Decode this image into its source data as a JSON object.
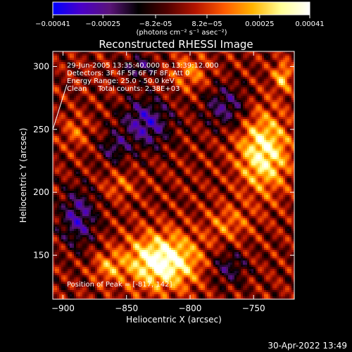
{
  "colorbar": {
    "min": -0.00041,
    "max": 0.00041,
    "tick_labels": [
      "-0.00041",
      "-0.00025",
      "-8.2e-05",
      "8.2e-05",
      "0.00025",
      "0.00041"
    ],
    "unit_label": "(photons cm⁻² s⁻¹ asec⁻²)",
    "stops": [
      "#0000ff",
      "#4b00c8",
      "#5a1478",
      "#000000",
      "#500000",
      "#b41400",
      "#ff5a00",
      "#ffb400",
      "#ffff96",
      "#ffffff"
    ]
  },
  "chart_data": {
    "type": "heatmap",
    "title": "Reconstructed RHESSI Image",
    "xlabel": "Heliocentric X (arcsec)",
    "ylabel": "Heliocentric Y (arcsec)",
    "xlim": [
      -908,
      -718
    ],
    "ylim": [
      115,
      312
    ],
    "x_ticks": [
      -900,
      -850,
      -800,
      -750
    ],
    "y_ticks": [
      150,
      200,
      250,
      300
    ],
    "x_tick_labels": [
      "−900",
      "−850",
      "−800",
      "−750"
    ],
    "y_tick_labels": [
      "150",
      "200",
      "250",
      "300"
    ],
    "annotations": [
      "29-Jun-2005 13:35:40.000 to 13:39:12.000",
      "Detectors: 3F 4F 5F 6F 7F 8F, Att 0",
      "Energy Range: 25.0 - 50.0 keV",
      "Clean     Total counts: 2.38E+03"
    ],
    "peak_label": "Position of Peak = [-817, 142]",
    "peak": [
      -817,
      142
    ],
    "hotspots": [
      {
        "x": -822,
        "y": 145,
        "sx": 20,
        "sy": 15,
        "amp": 0.00042
      },
      {
        "x": -742,
        "y": 232,
        "sx": 14,
        "sy": 22,
        "amp": 0.00034
      },
      {
        "x": -727,
        "y": 292,
        "sx": 5,
        "sy": 8,
        "amp": 0.00024
      },
      {
        "x": -800,
        "y": 295,
        "sx": 10,
        "sy": 10,
        "amp": 0.00016
      },
      {
        "x": -865,
        "y": 140,
        "sx": 8,
        "sy": 8,
        "amp": 0.00016
      },
      {
        "x": -890,
        "y": 248,
        "sx": 7,
        "sy": 9,
        "amp": 0.00012
      },
      {
        "x": -855,
        "y": 205,
        "sx": 9,
        "sy": 7,
        "amp": 0.00012
      },
      {
        "x": -770,
        "y": 175,
        "sx": 12,
        "sy": 10,
        "amp": 0.00014
      }
    ],
    "cold_spots": [
      {
        "x": -835,
        "y": 255,
        "sx": 14,
        "sy": 14,
        "amp": -0.00028
      },
      {
        "x": -772,
        "y": 268,
        "sx": 12,
        "sy": 12,
        "amp": -0.00022
      },
      {
        "x": -888,
        "y": 180,
        "sx": 10,
        "sy": 16,
        "amp": -0.00026
      },
      {
        "x": -770,
        "y": 140,
        "sx": 10,
        "sy": 10,
        "amp": -0.00018
      },
      {
        "x": -840,
        "y": 300,
        "sx": 9,
        "sy": 6,
        "amp": -0.0002
      },
      {
        "x": -860,
        "y": 235,
        "sx": 8,
        "sy": 8,
        "amp": -0.00018
      }
    ]
  },
  "timestamp": "30-Apr-2022 13:49"
}
